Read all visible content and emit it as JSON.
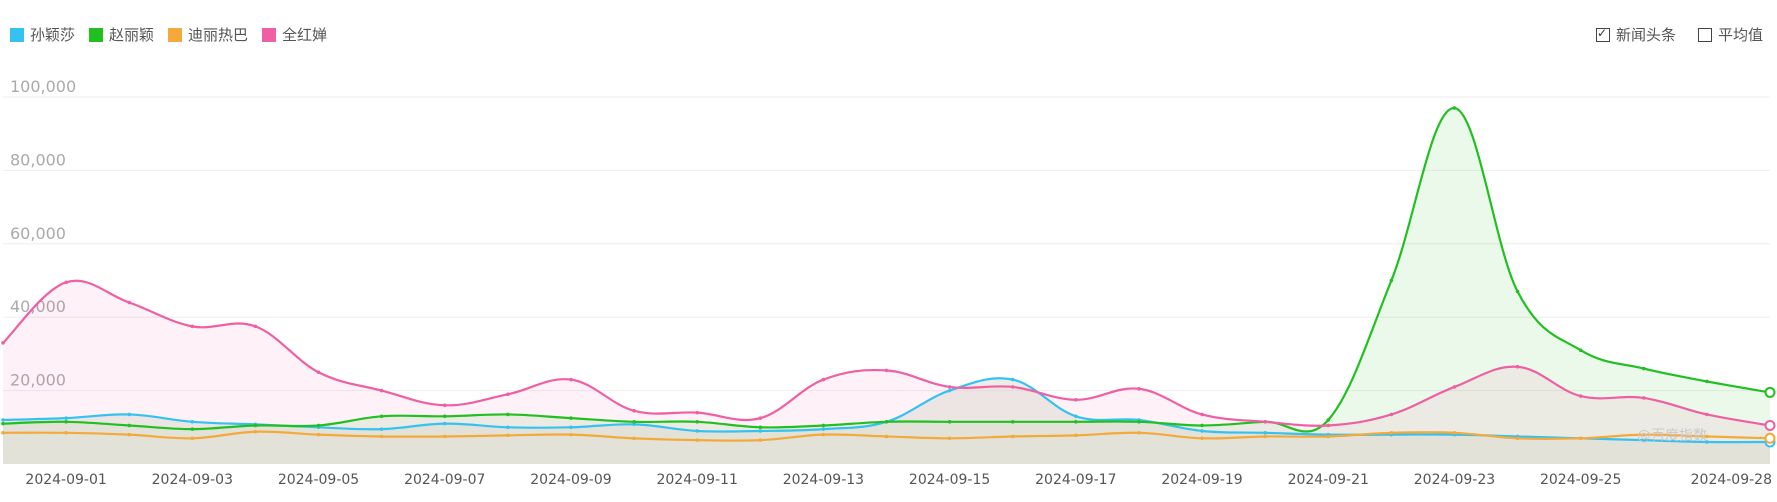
{
  "legend": [
    {
      "name": "孙颖莎",
      "color": "#35c2f0"
    },
    {
      "name": "赵丽颖",
      "color": "#20c020"
    },
    {
      "name": "迪丽热巴",
      "color": "#f5a93a"
    },
    {
      "name": "全红婵",
      "color": "#ef5fa3"
    }
  ],
  "controls": {
    "news_label": "新闻头条",
    "news_checked": true,
    "avg_label": "平均值",
    "avg_checked": false
  },
  "watermark": "@百度指数",
  "chart_data": {
    "type": "line",
    "title": "",
    "xlabel": "",
    "ylabel": "",
    "ylim": [
      0,
      100000
    ],
    "yticks": [
      "20,000",
      "40,000",
      "60,000",
      "80,000",
      "100,000"
    ],
    "ytick_values": [
      20000,
      40000,
      60000,
      80000,
      100000
    ],
    "xtick_labels": [
      "2024-09-01",
      "2024-09-03",
      "2024-09-05",
      "2024-09-07",
      "2024-09-09",
      "2024-09-11",
      "2024-09-13",
      "2024-09-15",
      "2024-09-17",
      "2024-09-19",
      "2024-09-21",
      "2024-09-23",
      "2024-09-25",
      "2024-09-28"
    ],
    "xtick_index": [
      1,
      3,
      5,
      7,
      9,
      11,
      13,
      15,
      17,
      19,
      21,
      23,
      25,
      28
    ],
    "x": [
      "2024-08-31",
      "2024-09-01",
      "2024-09-02",
      "2024-09-03",
      "2024-09-04",
      "2024-09-05",
      "2024-09-06",
      "2024-09-07",
      "2024-09-08",
      "2024-09-09",
      "2024-09-10",
      "2024-09-11",
      "2024-09-12",
      "2024-09-13",
      "2024-09-14",
      "2024-09-15",
      "2024-09-16",
      "2024-09-17",
      "2024-09-18",
      "2024-09-19",
      "2024-09-20",
      "2024-09-21",
      "2024-09-22",
      "2024-09-23",
      "2024-09-24",
      "2024-09-25",
      "2024-09-26",
      "2024-09-27",
      "2024-09-28"
    ],
    "series": [
      {
        "name": "孙颖莎",
        "color": "#35c2f0",
        "fill": false,
        "values": [
          12000,
          12500,
          13500,
          11500,
          10800,
          10000,
          9500,
          11000,
          10000,
          10000,
          10800,
          9000,
          9000,
          9500,
          11500,
          20000,
          23000,
          13000,
          12000,
          9000,
          8500,
          8000,
          8000,
          8000,
          7500,
          7000,
          6500,
          6000,
          6000
        ]
      },
      {
        "name": "赵丽颖",
        "color": "#20c020",
        "fill": true,
        "values": [
          11000,
          11500,
          10500,
          9500,
          10500,
          10500,
          13000,
          13000,
          13500,
          12500,
          11500,
          11500,
          10000,
          10500,
          11500,
          11500,
          11500,
          11500,
          11500,
          10500,
          11500,
          12000,
          50000,
          97000,
          47000,
          31000,
          26000,
          22500,
          19500
        ]
      },
      {
        "name": "迪丽热巴",
        "color": "#f5a93a",
        "fill": false,
        "values": [
          8500,
          8500,
          8000,
          7000,
          8800,
          8000,
          7500,
          7500,
          7800,
          8000,
          7000,
          6500,
          6500,
          8000,
          7500,
          7000,
          7500,
          7800,
          8500,
          7000,
          7500,
          7500,
          8500,
          8500,
          7000,
          7000,
          8000,
          7500,
          7000
        ]
      },
      {
        "name": "全红婵",
        "color": "#ef5fa3",
        "fill": true,
        "values": [
          33000,
          49500,
          44000,
          37500,
          37500,
          25000,
          20000,
          16000,
          19000,
          23000,
          14500,
          14000,
          12500,
          23000,
          25500,
          21000,
          21000,
          17500,
          20500,
          13500,
          11500,
          10500,
          13500,
          21000,
          26500,
          18500,
          18000,
          13500,
          10500
        ]
      }
    ]
  }
}
